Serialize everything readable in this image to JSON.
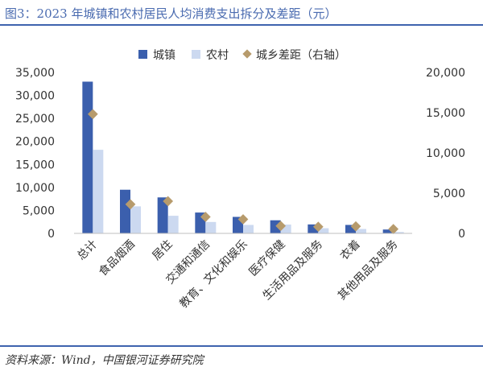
{
  "header": {
    "title": "图3：2023 年城镇和农村居民人均消费支出拆分及差距（元）"
  },
  "footer": {
    "source": "资料来源：Wind，中国银河证券研究院"
  },
  "colors": {
    "urban": "#3b5fad",
    "rural": "#ccd9f0",
    "gap": "#b79b6c",
    "title": "#4a6bb0",
    "rule": "#3e63ae"
  },
  "chart_data": {
    "type": "bar",
    "categories": [
      "总计",
      "食品烟酒",
      "居住",
      "交通和通信",
      "教育、文化和娱乐",
      "医疗保健",
      "生活用品及服务",
      "衣着",
      "其他用品及服务"
    ],
    "series": [
      {
        "name": "城镇",
        "type": "bar",
        "axis": "left",
        "values": [
          32994,
          9495,
          7825,
          4534,
          3589,
          2850,
          1950,
          1840,
          840
        ]
      },
      {
        "name": "农村",
        "type": "bar",
        "axis": "left",
        "values": [
          18175,
          5880,
          3830,
          2480,
          1840,
          1920,
          1120,
          960,
          300
        ]
      },
      {
        "name": "城乡差距（右轴）",
        "type": "scatter",
        "marker": "diamond",
        "axis": "right",
        "values": [
          14819,
          3615,
          3995,
          2054,
          1749,
          930,
          830,
          880,
          540
        ]
      }
    ],
    "y_left": {
      "min": 0,
      "max": 35000,
      "ticks": [
        "0",
        "5,000",
        "10,000",
        "15,000",
        "20,000",
        "25,000",
        "30,000",
        "35,000"
      ]
    },
    "y_right": {
      "min": 0,
      "max": 20000,
      "ticks": [
        "0",
        "5,000",
        "10,000",
        "15,000",
        "20,000"
      ]
    },
    "legend_position": "top-center",
    "grid": false
  }
}
